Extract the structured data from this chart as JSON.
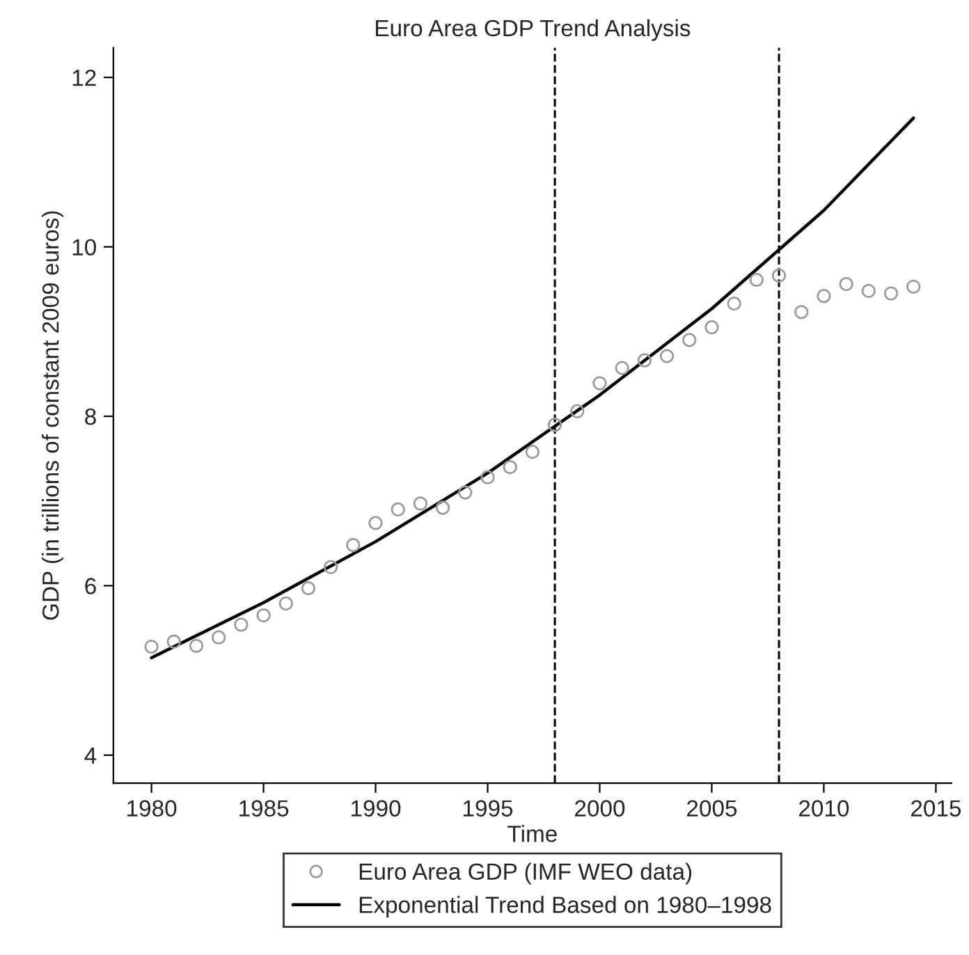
{
  "chart_data": {
    "type": "scatter",
    "title": "Euro Area GDP Trend Analysis",
    "xlabel": "Time",
    "ylabel": "GDP (in trillions of constant 2009 euros)",
    "series": [
      {
        "name": "Euro Area GDP (IMF WEO data)",
        "color": "#9a9a9a",
        "marker": "circle",
        "x": [
          1980,
          1981,
          1982,
          1983,
          1984,
          1985,
          1986,
          1987,
          1988,
          1989,
          1990,
          1991,
          1992,
          1993,
          1994,
          1995,
          1996,
          1997,
          1998,
          1999,
          2000,
          2001,
          2002,
          2003,
          2004,
          2005,
          2006,
          2007,
          2008,
          2009,
          2010,
          2011,
          2012,
          2013,
          2014
        ],
        "values": [
          5.28,
          5.34,
          5.29,
          5.39,
          5.54,
          5.65,
          5.79,
          5.97,
          6.22,
          6.48,
          6.74,
          6.9,
          6.97,
          6.92,
          7.1,
          7.28,
          7.4,
          7.58,
          7.9,
          8.06,
          8.39,
          8.57,
          8.66,
          8.71,
          8.9,
          9.05,
          9.33,
          9.61,
          9.66,
          9.23,
          9.42,
          9.56,
          9.48,
          9.45,
          9.53
        ]
      },
      {
        "name": "Exponential Trend Based on 1980–1998",
        "type": "line",
        "color": "#000000",
        "line_style": "solid",
        "x": [
          1980,
          1985,
          1990,
          1995,
          2000,
          2005,
          2010,
          2014
        ],
        "values": [
          5.15,
          5.8,
          6.52,
          7.33,
          8.25,
          9.27,
          10.43,
          11.52
        ]
      }
    ],
    "ref_lines": [
      {
        "axis": "x",
        "value": 1998,
        "color": "#000000",
        "line_style": "dashed"
      },
      {
        "axis": "x",
        "value": 2008,
        "color": "#000000",
        "line_style": "dashed"
      }
    ],
    "xlim": [
      1978.3,
      2015.7
    ],
    "ylim": [
      3.67,
      12.35
    ],
    "xticks": [
      1980,
      1985,
      1990,
      1995,
      2000,
      2005,
      2010,
      2015
    ],
    "yticks": [
      4,
      6,
      8,
      10,
      12
    ],
    "grid": false,
    "legend": "bottom"
  }
}
